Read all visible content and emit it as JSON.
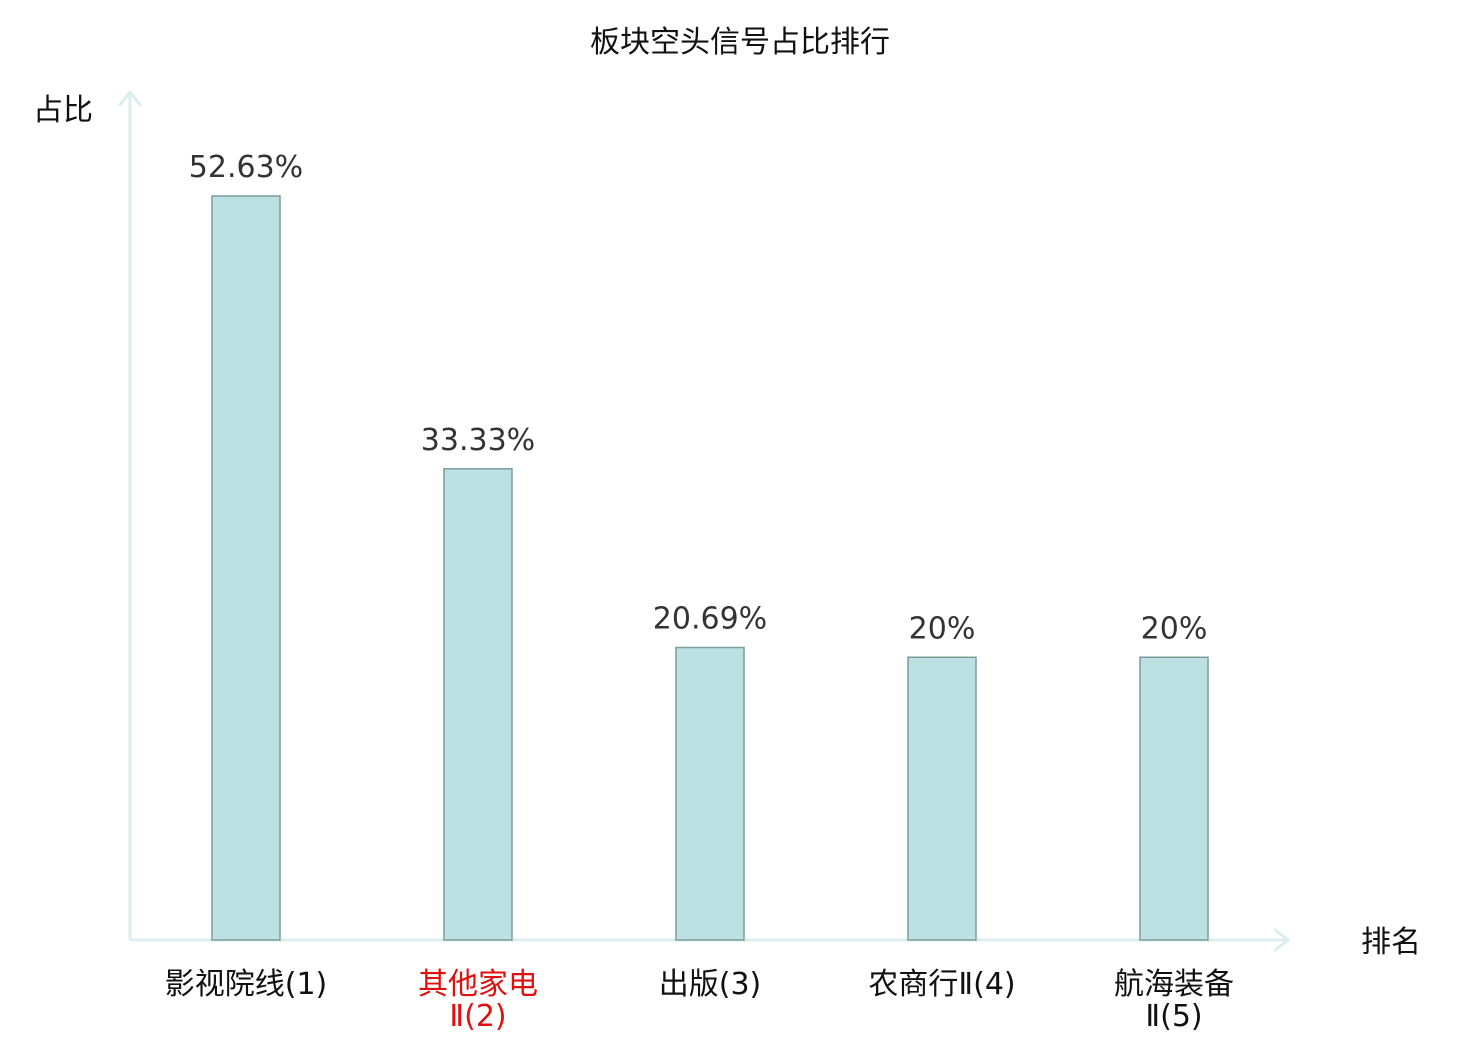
{
  "chart_data": {
    "type": "bar",
    "title": "板块空头信号占比排行",
    "ylabel": "占比",
    "xlabel": "排名",
    "ylim": [
      0,
      60
    ],
    "grid": false,
    "legend": "none",
    "categories": [
      {
        "lines": [
          "影视院线(1)"
        ],
        "highlight": false
      },
      {
        "lines": [
          "其他家电",
          "Ⅱ(2)"
        ],
        "highlight": true
      },
      {
        "lines": [
          "出版(3)"
        ],
        "highlight": false
      },
      {
        "lines": [
          "农商行Ⅱ(4)"
        ],
        "highlight": false
      },
      {
        "lines": [
          "航海装备",
          "Ⅱ(5)"
        ],
        "highlight": false
      }
    ],
    "values": [
      52.63,
      33.33,
      20.69,
      20,
      20
    ],
    "value_labels": [
      "52.63%",
      "33.33%",
      "20.69%",
      "20%",
      "20%"
    ]
  },
  "colors": {
    "bar_fill": "#bde0e2",
    "bar_stroke": "#7a9c9e",
    "axis": "#d8efee",
    "highlight_label": "#e01010"
  }
}
